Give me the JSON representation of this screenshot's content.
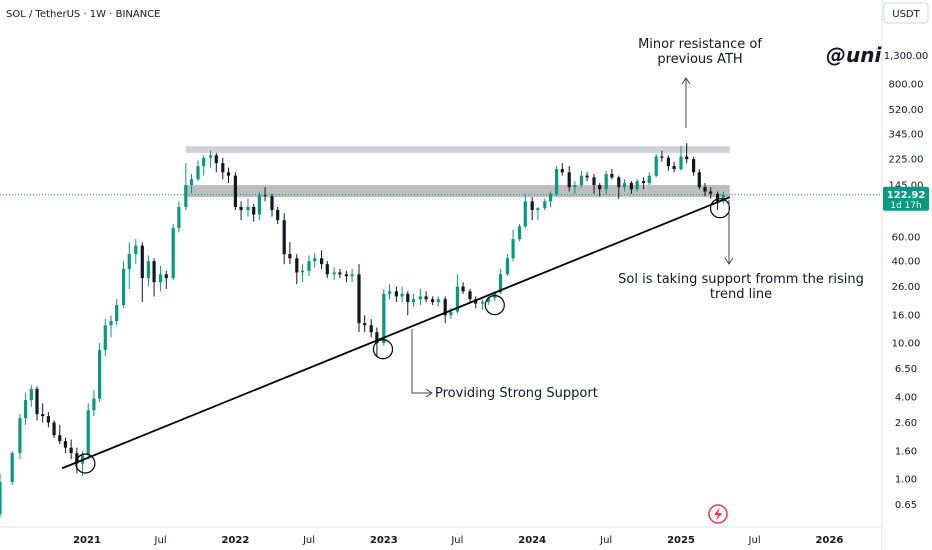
{
  "chart_data": {
    "type": "candlestick",
    "title": "SOL / TetherUS · 1W · BINANCE",
    "currency_label": "USDT",
    "watermark": "@unic",
    "y_scale": "log",
    "ylim": [
      0.5,
      1500
    ],
    "y_ticks": [
      "1,300.00",
      "800.00",
      "520.00",
      "345.00",
      "225.00",
      "145.00",
      "60.00",
      "40.00",
      "26.00",
      "16.00",
      "10.00",
      "6.50",
      "4.00",
      "2.60",
      "1.60",
      "1.00",
      "0.65"
    ],
    "y_tick_values": [
      1300,
      800,
      520,
      345,
      225,
      145,
      60,
      40,
      26,
      16,
      10,
      6.5,
      4,
      2.6,
      1.6,
      1.0,
      0.65
    ],
    "x_ticks": [
      {
        "label": "2021",
        "date": "2021-01-01",
        "major": true
      },
      {
        "label": "Jul",
        "date": "2021-07-01",
        "major": false
      },
      {
        "label": "2022",
        "date": "2022-01-01",
        "major": true
      },
      {
        "label": "Jul",
        "date": "2022-07-01",
        "major": false
      },
      {
        "label": "2023",
        "date": "2023-01-01",
        "major": true
      },
      {
        "label": "Jul",
        "date": "2023-07-01",
        "major": false
      },
      {
        "label": "2024",
        "date": "2024-01-01",
        "major": true
      },
      {
        "label": "Jul",
        "date": "2024-07-01",
        "major": false
      },
      {
        "label": "2025",
        "date": "2025-01-01",
        "major": true
      },
      {
        "label": "Jul",
        "date": "2025-07-01",
        "major": false
      },
      {
        "label": "2026",
        "date": "2026-01-01",
        "major": true
      }
    ],
    "x_range": [
      "2020-04-27",
      "2026-06-20"
    ],
    "current_price": {
      "value": 122.92,
      "label": "122.92",
      "countdown": "1d 17h",
      "color": "#089981"
    },
    "resistance_zones": [
      {
        "from": 250,
        "to": 280,
        "start": "2021-09-01",
        "end": "2025-05-01",
        "color": "#c9c9d6"
      },
      {
        "from": 118,
        "to": 145,
        "start": "2021-09-01",
        "end": "2025-05-01",
        "color": "#b3b3b3"
      }
    ],
    "trend_line": {
      "start": {
        "date": "2020-11-01",
        "value": 1.2
      },
      "end": {
        "date": "2025-05-01",
        "value": 118
      }
    },
    "circles": [
      {
        "date": "2020-12-28",
        "value": 1.3
      },
      {
        "date": "2022-12-30",
        "value": 9.0
      },
      {
        "date": "2023-10-01",
        "value": 19.0
      },
      {
        "date": "2025-04-07",
        "value": 98
      }
    ],
    "annotations": {
      "resistance": "Minor resistance of previous ATH",
      "support_trend": "Sol is taking support fromm the rising trend line",
      "strong_support": "Providing Strong Support"
    },
    "series": [
      {
        "ohlc": [
          [
            "2020-05-04",
            0.6,
            0.65,
            0.5,
            0.55
          ],
          [
            "2020-06-01",
            0.55,
            1.1,
            0.52,
            0.95
          ],
          [
            "2020-07-01",
            0.95,
            1.6,
            0.9,
            1.55
          ],
          [
            "2020-07-20",
            1.55,
            3.0,
            1.4,
            2.8
          ],
          [
            "2020-08-03",
            2.8,
            4.3,
            2.5,
            3.8
          ],
          [
            "2020-08-17",
            3.8,
            4.9,
            3.4,
            4.6
          ],
          [
            "2020-08-31",
            4.6,
            4.8,
            2.7,
            3.0
          ],
          [
            "2020-09-14",
            3.0,
            3.6,
            2.6,
            2.9
          ],
          [
            "2020-09-28",
            2.9,
            3.1,
            2.4,
            2.6
          ],
          [
            "2020-10-12",
            2.6,
            2.7,
            2.0,
            2.1
          ],
          [
            "2020-10-26",
            2.1,
            2.5,
            1.8,
            1.9
          ],
          [
            "2020-11-09",
            1.9,
            2.0,
            1.55,
            1.7
          ],
          [
            "2020-11-23",
            1.7,
            1.95,
            1.4,
            1.55
          ],
          [
            "2020-12-07",
            1.55,
            1.7,
            1.1,
            1.3
          ],
          [
            "2020-12-21",
            1.3,
            1.6,
            1.05,
            1.5
          ],
          [
            "2021-01-04",
            1.5,
            3.6,
            1.4,
            3.2
          ],
          [
            "2021-01-18",
            3.2,
            4.5,
            2.9,
            3.9
          ],
          [
            "2021-02-01",
            3.9,
            10.0,
            3.7,
            8.9
          ],
          [
            "2021-02-15",
            8.9,
            15.0,
            8.0,
            13.5
          ],
          [
            "2021-03-01",
            13.5,
            16.0,
            11.0,
            14.5
          ],
          [
            "2021-03-15",
            14.5,
            21.0,
            13.5,
            19.0
          ],
          [
            "2021-04-01",
            19.0,
            40.0,
            18.0,
            35.0
          ],
          [
            "2021-04-15",
            35.0,
            55.0,
            25.0,
            45.0
          ],
          [
            "2021-05-01",
            45.0,
            58.0,
            38.0,
            52.0
          ],
          [
            "2021-05-17",
            52.0,
            55.0,
            20.0,
            30.0
          ],
          [
            "2021-06-01",
            30.0,
            44.0,
            26.0,
            40.0
          ],
          [
            "2021-06-15",
            40.0,
            42.0,
            22.0,
            28.0
          ],
          [
            "2021-07-01",
            28.0,
            37.0,
            24.0,
            32.0
          ],
          [
            "2021-07-15",
            32.0,
            34.0,
            25.0,
            30.0
          ],
          [
            "2021-08-01",
            30.0,
            75.0,
            29.0,
            70.0
          ],
          [
            "2021-08-15",
            70.0,
            110.0,
            65.0,
            100.0
          ],
          [
            "2021-09-01",
            100.0,
            210.0,
            95.0,
            145.0
          ],
          [
            "2021-09-15",
            145.0,
            175.0,
            125.0,
            160.0
          ],
          [
            "2021-10-01",
            160.0,
            220.0,
            155.0,
            200.0
          ],
          [
            "2021-10-15",
            200.0,
            240.0,
            170.0,
            230.0
          ],
          [
            "2021-11-01",
            230.0,
            260.0,
            195.0,
            240.0
          ],
          [
            "2021-11-15",
            240.0,
            250.0,
            180.0,
            210.0
          ],
          [
            "2021-12-01",
            210.0,
            230.0,
            160.0,
            180.0
          ],
          [
            "2021-12-15",
            180.0,
            195.0,
            150.0,
            170.0
          ],
          [
            "2022-01-01",
            170.0,
            180.0,
            95.0,
            100.0
          ],
          [
            "2022-01-15",
            100.0,
            110.0,
            80.0,
            95.0
          ],
          [
            "2022-02-01",
            95.0,
            115.0,
            85.0,
            100.0
          ],
          [
            "2022-02-15",
            100.0,
            105.0,
            78.0,
            88.0
          ],
          [
            "2022-03-01",
            88.0,
            130.0,
            80.0,
            122.0
          ],
          [
            "2022-03-15",
            122.0,
            140.0,
            110.0,
            120.0
          ],
          [
            "2022-04-01",
            120.0,
            125.0,
            85.0,
            95.0
          ],
          [
            "2022-04-15",
            95.0,
            100.0,
            75.0,
            80.0
          ],
          [
            "2022-05-01",
            80.0,
            90.0,
            38.0,
            45.0
          ],
          [
            "2022-05-15",
            45.0,
            55.0,
            38.0,
            42.0
          ],
          [
            "2022-06-01",
            42.0,
            45.0,
            27.0,
            33.0
          ],
          [
            "2022-06-15",
            33.0,
            38.0,
            28.0,
            34.0
          ],
          [
            "2022-07-01",
            34.0,
            44.0,
            31.0,
            40.0
          ],
          [
            "2022-07-15",
            40.0,
            46.0,
            36.0,
            42.0
          ],
          [
            "2022-08-01",
            42.0,
            48.0,
            35.0,
            38.0
          ],
          [
            "2022-08-15",
            38.0,
            40.0,
            30.0,
            32.0
          ],
          [
            "2022-09-01",
            32.0,
            36.0,
            29.0,
            33.0
          ],
          [
            "2022-09-15",
            33.0,
            35.0,
            30.0,
            32.0
          ],
          [
            "2022-10-01",
            32.0,
            34.0,
            28.0,
            31.0
          ],
          [
            "2022-10-15",
            31.0,
            35.0,
            28.0,
            32.0
          ],
          [
            "2022-11-01",
            32.0,
            38.0,
            12.0,
            14.0
          ],
          [
            "2022-11-15",
            14.0,
            16.0,
            12.0,
            13.5
          ],
          [
            "2022-12-01",
            13.5,
            15.0,
            11.0,
            12.0
          ],
          [
            "2022-12-15",
            12.0,
            13.0,
            8.0,
            10.0
          ],
          [
            "2023-01-01",
            10.0,
            25.0,
            9.5,
            23.0
          ],
          [
            "2023-01-15",
            23.0,
            27.0,
            21.0,
            24.0
          ],
          [
            "2023-02-01",
            24.0,
            26.0,
            20.0,
            22.0
          ],
          [
            "2023-02-15",
            22.0,
            26.0,
            20.0,
            23.0
          ],
          [
            "2023-03-01",
            23.0,
            24.0,
            16.0,
            20.0
          ],
          [
            "2023-03-15",
            20.0,
            23.0,
            18.5,
            21.0
          ],
          [
            "2023-04-01",
            21.0,
            25.0,
            19.0,
            22.0
          ],
          [
            "2023-04-15",
            22.0,
            24.0,
            20.0,
            21.0
          ],
          [
            "2023-05-01",
            21.0,
            22.0,
            19.0,
            20.0
          ],
          [
            "2023-05-15",
            20.0,
            22.0,
            18.5,
            21.0
          ],
          [
            "2023-06-01",
            21.0,
            22.0,
            14.0,
            16.0
          ],
          [
            "2023-06-15",
            16.0,
            18.0,
            15.0,
            17.0
          ],
          [
            "2023-07-01",
            17.0,
            32.0,
            16.5,
            26.0
          ],
          [
            "2023-07-15",
            26.0,
            28.0,
            23.0,
            24.0
          ],
          [
            "2023-08-01",
            24.0,
            25.0,
            19.5,
            21.0
          ],
          [
            "2023-08-15",
            21.0,
            22.0,
            18.0,
            19.5
          ],
          [
            "2023-09-01",
            19.5,
            21.0,
            17.5,
            20.0
          ],
          [
            "2023-09-15",
            20.0,
            22.0,
            19.0,
            21.5
          ],
          [
            "2023-10-01",
            21.5,
            24.0,
            20.5,
            23.5
          ],
          [
            "2023-10-15",
            23.5,
            35.0,
            23.0,
            32.0
          ],
          [
            "2023-11-01",
            32.0,
            45.0,
            31.0,
            42.0
          ],
          [
            "2023-11-15",
            42.0,
            68.0,
            40.0,
            58.0
          ],
          [
            "2023-12-01",
            58.0,
            75.0,
            56.0,
            72.0
          ],
          [
            "2023-12-15",
            72.0,
            125.0,
            70.0,
            110.0
          ],
          [
            "2024-01-01",
            110.0,
            118.0,
            80.0,
            95.0
          ],
          [
            "2024-01-15",
            95.0,
            100.0,
            80.0,
            98.0
          ],
          [
            "2024-02-01",
            98.0,
            115.0,
            95.0,
            110.0
          ],
          [
            "2024-02-15",
            110.0,
            130.0,
            100.0,
            125.0
          ],
          [
            "2024-03-01",
            125.0,
            200.0,
            120.0,
            190.0
          ],
          [
            "2024-03-15",
            190.0,
            210.0,
            170.0,
            180.0
          ],
          [
            "2024-04-01",
            180.0,
            200.0,
            130.0,
            140.0
          ],
          [
            "2024-04-15",
            140.0,
            155.0,
            125.0,
            145.0
          ],
          [
            "2024-05-01",
            145.0,
            185.0,
            140.0,
            170.0
          ],
          [
            "2024-05-15",
            170.0,
            180.0,
            155.0,
            165.0
          ],
          [
            "2024-06-01",
            165.0,
            175.0,
            125.0,
            145.0
          ],
          [
            "2024-06-15",
            145.0,
            150.0,
            120.0,
            135.0
          ],
          [
            "2024-07-01",
            135.0,
            185.0,
            125.0,
            175.0
          ],
          [
            "2024-07-15",
            175.0,
            190.0,
            160.0,
            165.0
          ],
          [
            "2024-08-01",
            165.0,
            170.0,
            115.0,
            140.0
          ],
          [
            "2024-08-15",
            140.0,
            160.0,
            130.0,
            150.0
          ],
          [
            "2024-09-01",
            150.0,
            155.0,
            125.0,
            135.0
          ],
          [
            "2024-09-15",
            135.0,
            160.0,
            130.0,
            155.0
          ],
          [
            "2024-10-01",
            155.0,
            165.0,
            135.0,
            150.0
          ],
          [
            "2024-10-15",
            150.0,
            180.0,
            145.0,
            170.0
          ],
          [
            "2024-11-01",
            170.0,
            245.0,
            165.0,
            235.0
          ],
          [
            "2024-11-15",
            235.0,
            260.0,
            215.0,
            230.0
          ],
          [
            "2024-12-01",
            230.0,
            240.0,
            185.0,
            200.0
          ],
          [
            "2024-12-15",
            200.0,
            215.0,
            180.0,
            190.0
          ],
          [
            "2025-01-01",
            190.0,
            280.0,
            185.0,
            235.0
          ],
          [
            "2025-01-15",
            235.0,
            295.0,
            210.0,
            225.0
          ],
          [
            "2025-02-01",
            225.0,
            235.0,
            170.0,
            180.0
          ],
          [
            "2025-02-15",
            180.0,
            190.0,
            135.0,
            140.0
          ],
          [
            "2025-03-01",
            140.0,
            150.0,
            120.0,
            130.0
          ],
          [
            "2025-03-15",
            130.0,
            140.0,
            115.0,
            125.0
          ],
          [
            "2025-04-01",
            125.0,
            130.0,
            95.0,
            110.0
          ],
          [
            "2025-04-15",
            110.0,
            130.0,
            105.0,
            122.92
          ]
        ]
      }
    ]
  }
}
